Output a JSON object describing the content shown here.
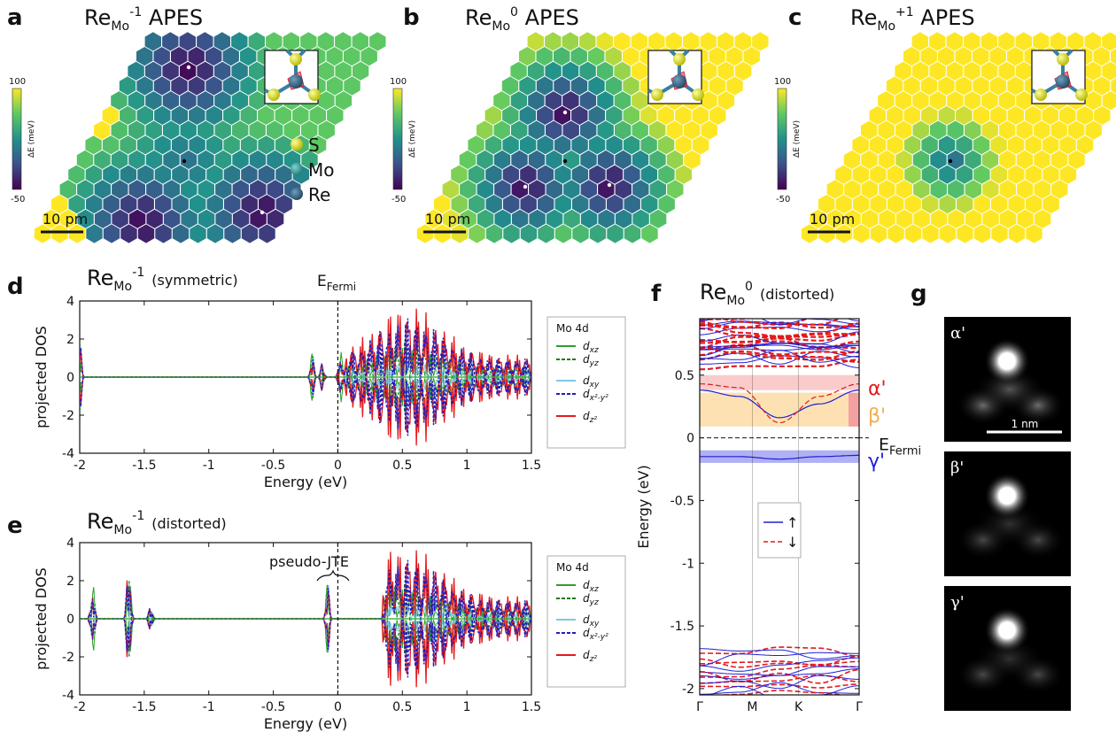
{
  "panels": {
    "a": {
      "letter": "a",
      "title_base": "Re",
      "title_sub": "Mo",
      "title_sup": "-1",
      "title_tail": " APES",
      "cbar_max": "100",
      "cbar_min": "-50",
      "cbar_label": "ΔE (meV)",
      "scalebar": "10 pm",
      "legend": [
        "S",
        "Mo",
        "Re"
      ]
    },
    "b": {
      "letter": "b",
      "title_base": "Re",
      "title_sub": "Mo",
      "title_sup": "0",
      "title_tail": " APES",
      "cbar_max": "100",
      "cbar_min": "-50",
      "cbar_label": "ΔE (meV)",
      "scalebar": "10 pm"
    },
    "c": {
      "letter": "c",
      "title_base": "Re",
      "title_sub": "Mo",
      "title_sup": "+1",
      "title_tail": " APES",
      "cbar_max": "100",
      "cbar_min": "-50",
      "cbar_label": "ΔE (meV)",
      "scalebar": "10 pm"
    },
    "d": {
      "letter": "d",
      "title_base": "Re",
      "title_sub": "Mo",
      "title_sup": "-1",
      "title_tail": "(symmetric)",
      "annotation_base": "E",
      "annotation_sub": "Fermi"
    },
    "e": {
      "letter": "e",
      "title_base": "Re",
      "title_sub": "Mo",
      "title_sup": "-1",
      "title_tail": "(distorted)",
      "annotation": "pseudo-JTE"
    },
    "f": {
      "letter": "f",
      "title_base": "Re",
      "title_sub": "Mo",
      "title_sup": "0",
      "title_tail": "(distorted)",
      "fermi_base": "E",
      "fermi_sub": "Fermi",
      "state_labels": [
        "α'",
        "β'",
        "γ'"
      ],
      "legend": [
        "↑",
        "↓"
      ]
    },
    "g": {
      "letter": "g",
      "image_labels": [
        "α'",
        "β'",
        "γ'"
      ],
      "scalebar": "1 nm"
    }
  },
  "dos_legend": {
    "title": "Mo 4d",
    "entries": [
      {
        "base": "d",
        "sub": "xz",
        "color": "#2ca02c",
        "dash": false
      },
      {
        "base": "d",
        "sub": "yz",
        "color": "#1a7a1a",
        "dash": true
      },
      {
        "base": "d",
        "sub": "xy",
        "color": "#7ec8e3",
        "dash": false
      },
      {
        "base": "d",
        "sub": "x²-y²",
        "color": "#1f1fbf",
        "dash": true
      },
      {
        "base": "d",
        "sub": "z²",
        "color": "#e31a1c",
        "dash": false
      }
    ]
  },
  "colors": {
    "viridis_low": "#440154",
    "viridis_mid": "#21918c",
    "viridis_high": "#fde725",
    "spin_up": "#1f1fd6",
    "spin_down": "#e31a1c",
    "alpha_band": "#f4a0a0",
    "beta_band": "#fcd9a0",
    "gamma_band": "#8e8ef0"
  },
  "chart_data": [
    {
      "type": "heatmap",
      "panel": "a",
      "title": "ReMo-1 APES",
      "colorbar": {
        "label": "ΔE (meV)",
        "range": [
          -50,
          100
        ]
      },
      "minima": 3,
      "description_values": {
        "saturated_region": "upper-left"
      }
    },
    {
      "type": "heatmap",
      "panel": "b",
      "title": "ReMo0 APES",
      "colorbar": {
        "label": "ΔE (meV)",
        "range": [
          -50,
          100
        ]
      },
      "minima": 3
    },
    {
      "type": "heatmap",
      "panel": "c",
      "title": "ReMo+1 APES",
      "colorbar": {
        "label": "ΔE (meV)",
        "range": [
          -50,
          100
        ]
      },
      "minima": 1
    },
    {
      "type": "line",
      "panel": "d",
      "title": "ReMo-1 (symmetric)",
      "xlabel": "Energy (eV)",
      "ylabel": "projected DOS",
      "xlim": [
        -2,
        1.5
      ],
      "ylim": [
        -4,
        4
      ],
      "xticks": [
        "-2",
        "-1.5",
        "-1",
        "-0.5",
        "0",
        "0.5",
        "1",
        "1.5"
      ],
      "yticks": [
        "-4",
        "-2",
        "0",
        "2",
        "4"
      ],
      "fermi": 0,
      "peaks": [
        {
          "x": -2.0,
          "amp": 1.5
        },
        {
          "x": -0.2,
          "amp": 1.0
        },
        {
          "x": -0.12,
          "amp": 0.6
        },
        {
          "x": 0.02,
          "amp": 1.2
        }
      ],
      "dense_region": [
        0.05,
        1.5
      ]
    },
    {
      "type": "line",
      "panel": "e",
      "title": "ReMo-1 (distorted)",
      "xlabel": "Energy (eV)",
      "ylabel": "projected DOS",
      "xlim": [
        -2,
        1.5
      ],
      "ylim": [
        -4,
        4
      ],
      "xticks": [
        "-2",
        "-1.5",
        "-1",
        "-0.5",
        "0",
        "0.5",
        "1",
        "1.5"
      ],
      "yticks": [
        "-4",
        "-2",
        "0",
        "2",
        "4"
      ],
      "fermi": 0,
      "peaks": [
        {
          "x": -1.9,
          "amp": 1.6
        },
        {
          "x": -1.62,
          "amp": 3.0
        },
        {
          "x": -1.45,
          "amp": 0.6
        },
        {
          "x": -0.08,
          "amp": 1.5
        },
        {
          "x": 0.42,
          "amp": 0.7
        }
      ],
      "dense_region": [
        0.35,
        1.5
      ]
    },
    {
      "type": "line",
      "panel": "f",
      "title": "ReMo0 (distorted)",
      "ylabel": "Energy (eV)",
      "ylim": [
        -2.05,
        0.95
      ],
      "xticks": [
        "Γ",
        "M",
        "K",
        "Γ"
      ],
      "yticks": [
        "-2",
        "-1.5",
        "-1",
        "-0.5",
        "0",
        "0.5"
      ],
      "fermi": 0,
      "bands": [
        {
          "name": "↑",
          "values": [
            0.38,
            0.33,
            0.16,
            0.27,
            0.38
          ]
        },
        {
          "name": "↑",
          "values": [
            -0.15,
            -0.15,
            -0.17,
            -0.15,
            -0.14
          ]
        },
        {
          "name": "↓",
          "values": [
            0.43,
            0.4,
            0.12,
            0.33,
            0.43
          ]
        }
      ],
      "highlight_bands": [
        {
          "label": "α'",
          "range": [
            0.38,
            0.5
          ]
        },
        {
          "label": "β'",
          "range": [
            0.09,
            0.36
          ]
        },
        {
          "label": "γ'",
          "range": [
            -0.2,
            -0.1
          ]
        }
      ]
    },
    {
      "type": "heatmap",
      "panel": "g",
      "images": [
        "α'",
        "β'",
        "γ'"
      ],
      "scalebar": "1 nm"
    }
  ]
}
